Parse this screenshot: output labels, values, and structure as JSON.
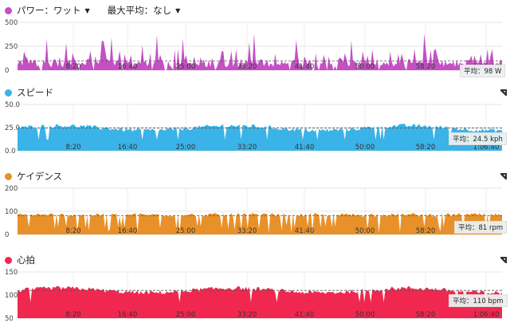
{
  "header": {
    "metric_selector": "パワー：ワット",
    "avg_selector": "最大平均：なし"
  },
  "x_axis": {
    "tick_labels": [
      "8:20",
      "16:40",
      "25:00",
      "33:20",
      "41:40",
      "50:00",
      "58:20",
      "1:06:40"
    ]
  },
  "chart_data": [
    {
      "type": "area",
      "key": "power",
      "title": "パワー：ワット",
      "color": "#c450c4",
      "y_ticks": [
        "500",
        "250",
        "0"
      ],
      "ylim": [
        0,
        500
      ],
      "average": 98,
      "average_label": "平均：98 W",
      "grid": true,
      "style": "spiky"
    },
    {
      "type": "area",
      "key": "speed",
      "title": "スピード",
      "color": "#3ab3e8",
      "y_ticks": [
        "50.0",
        "25.0",
        "0.0"
      ],
      "ylim": [
        0,
        50
      ],
      "average": 24.5,
      "average_label": "平均：24.5 kph",
      "grid": true,
      "style": "smooth"
    },
    {
      "type": "area",
      "key": "cadence",
      "title": "ケイデンス",
      "color": "#e8912a",
      "y_ticks": [
        "200",
        "100",
        "0"
      ],
      "ylim": [
        0,
        200
      ],
      "average": 81,
      "average_label": "平均：81 rpm",
      "grid": true,
      "style": "bars"
    },
    {
      "type": "area",
      "key": "heart_rate",
      "title": "心拍",
      "color": "#f0284f",
      "y_ticks": [
        "150",
        "100",
        "50"
      ],
      "ylim": [
        50,
        150
      ],
      "average": 110,
      "average_label": "平均：110 bpm",
      "grid": true,
      "style": "smooth"
    }
  ]
}
